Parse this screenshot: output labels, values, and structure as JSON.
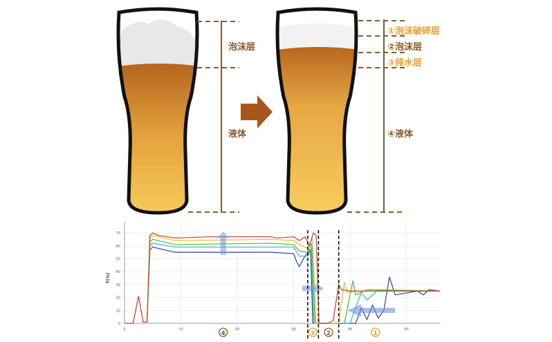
{
  "colors": {
    "brown": "#8b5a2b",
    "orange": "#e8a030",
    "arrow": "#a8561e",
    "foam": "#ffffff",
    "beer_dark": "#b5651d",
    "beer_light": "#f6c453"
  },
  "glass_before": {
    "labels": [
      "泡沫层",
      "液体"
    ]
  },
  "glass_after": {
    "labels": [
      "①泡沫破碎层",
      "②泡沫层",
      "③排水层",
      "④液体"
    ]
  },
  "arrow_icon": "right-arrow",
  "chart_data": {
    "type": "line",
    "ylabel": "T(%)",
    "xlabel": "",
    "xlim": [
      0,
      56
    ],
    "ylim": [
      0,
      75
    ],
    "xticks": [
      0,
      10,
      20,
      30,
      40,
      50
    ],
    "yticks": [
      0,
      10,
      20,
      30,
      40,
      50,
      60,
      70
    ],
    "grid": true,
    "dashed_lines_x": [
      32.5,
      34.4,
      38.0
    ],
    "region_labels": [
      {
        "text": "④",
        "x": 17.5,
        "color": "#8b5a2b"
      },
      {
        "text": "③",
        "x": 33.4,
        "color": "#e8a030"
      },
      {
        "text": "②",
        "x": 36.2,
        "color": "#8b5a2b"
      },
      {
        "text": "①",
        "x": 44.5,
        "color": "#e8a030"
      }
    ],
    "series": [
      {
        "color": "#d23a1e",
        "points": [
          [
            0,
            0
          ],
          [
            1.5,
            0
          ],
          [
            2.5,
            21
          ],
          [
            3.3,
            1
          ],
          [
            4,
            1
          ],
          [
            4.5,
            68
          ],
          [
            5,
            70
          ],
          [
            6,
            68
          ],
          [
            9,
            66
          ],
          [
            15,
            67
          ],
          [
            26,
            67
          ],
          [
            27,
            66
          ],
          [
            30,
            67
          ],
          [
            31,
            64
          ],
          [
            32,
            67
          ],
          [
            32.8,
            60
          ],
          [
            33.5,
            70
          ],
          [
            34,
            68
          ],
          [
            34.5,
            0
          ],
          [
            36,
            0
          ],
          [
            37,
            2
          ],
          [
            38,
            30
          ],
          [
            38.5,
            26
          ],
          [
            40,
            25
          ],
          [
            56,
            25
          ]
        ]
      },
      {
        "color": "#e8c020",
        "points": [
          [
            4,
            1
          ],
          [
            4.5,
            66
          ],
          [
            5,
            68
          ],
          [
            9,
            64
          ],
          [
            26,
            65
          ],
          [
            30,
            64
          ],
          [
            31,
            61
          ],
          [
            32.5,
            58
          ],
          [
            33.3,
            66
          ],
          [
            34,
            0
          ],
          [
            38,
            0
          ],
          [
            39,
            32
          ],
          [
            39.5,
            24
          ],
          [
            42,
            25
          ],
          [
            56,
            25
          ]
        ]
      },
      {
        "color": "#40c040",
        "points": [
          [
            4,
            1
          ],
          [
            4.5,
            63
          ],
          [
            5,
            65
          ],
          [
            9,
            61
          ],
          [
            26,
            62
          ],
          [
            30,
            61
          ],
          [
            31,
            56
          ],
          [
            32.5,
            55
          ],
          [
            33.2,
            62
          ],
          [
            33.8,
            0
          ],
          [
            39,
            0
          ],
          [
            40.5,
            33
          ],
          [
            41,
            22
          ],
          [
            43,
            26
          ],
          [
            56,
            25
          ]
        ]
      },
      {
        "color": "#30b8d8",
        "points": [
          [
            4,
            1
          ],
          [
            4.5,
            60
          ],
          [
            5,
            62
          ],
          [
            9,
            59
          ],
          [
            26,
            59
          ],
          [
            30,
            59
          ],
          [
            31,
            52
          ],
          [
            32.5,
            52
          ],
          [
            33.1,
            58
          ],
          [
            33.6,
            0
          ],
          [
            40,
            0
          ],
          [
            42,
            24
          ],
          [
            43,
            18
          ],
          [
            45,
            26
          ],
          [
            56,
            25
          ]
        ]
      },
      {
        "color": "#3040a0",
        "points": [
          [
            4,
            1
          ],
          [
            4.5,
            57
          ],
          [
            5,
            59
          ],
          [
            9,
            55
          ],
          [
            26,
            55
          ],
          [
            30,
            54
          ],
          [
            30.5,
            48
          ],
          [
            31,
            44
          ],
          [
            32,
            52
          ],
          [
            33,
            57
          ],
          [
            33.4,
            0
          ],
          [
            41,
            0
          ],
          [
            42,
            12
          ],
          [
            43,
            3
          ],
          [
            44,
            14
          ],
          [
            45,
            4
          ],
          [
            46,
            10
          ],
          [
            47,
            36
          ],
          [
            48,
            22
          ],
          [
            52,
            25
          ],
          [
            53,
            22
          ],
          [
            54,
            26
          ],
          [
            56,
            25
          ]
        ]
      }
    ]
  }
}
